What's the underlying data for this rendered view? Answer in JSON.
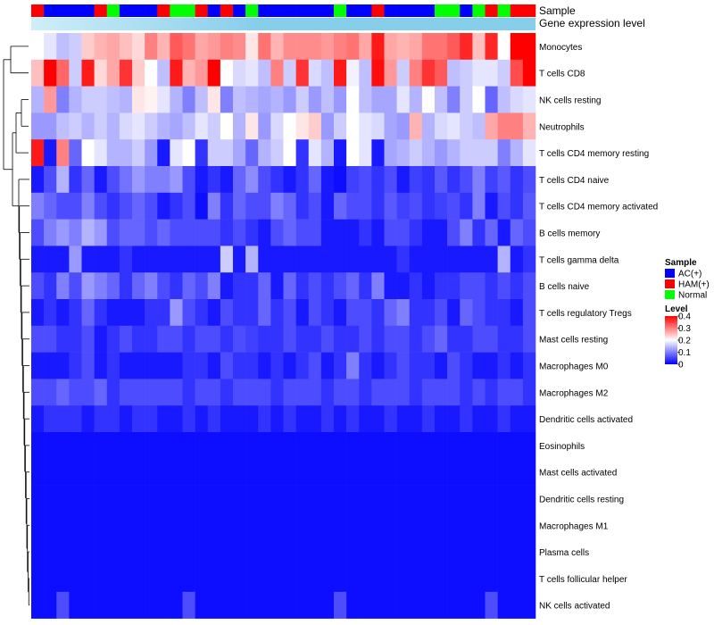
{
  "chart_data": {
    "type": "heatmap",
    "annotation_labels": {
      "sample": "Sample",
      "expression": "Gene expression level"
    },
    "rows": [
      "Monocytes",
      "T cells CD8",
      "NK cells resting",
      "Neutrophils",
      "T cells CD4 memory resting",
      "T cells CD4 naive",
      "T cells CD4 memory activated",
      "B cells memory",
      "T cells gamma delta",
      "B cells naive",
      "T cells regulatory  Tregs",
      "Mast cells resting",
      "Macrophages M0",
      "Macrophages M2",
      "Dendritic cells activated",
      "Eosinophils",
      "Mast cells activated",
      "Dendritic cells resting",
      "Macrophages M1",
      "Plasma cells",
      "T cells follicular helper",
      "NK cells activated"
    ],
    "column_groups": [
      "HAM(+)",
      "AC(+)",
      "AC(+)",
      "AC(+)",
      "AC(+)",
      "HAM(+)",
      "Normal",
      "AC(+)",
      "AC(+)",
      "AC(+)",
      "HAM(+)",
      "Normal",
      "Normal",
      "HAM(+)",
      "AC(+)",
      "HAM(+)",
      "AC(+)",
      "Normal",
      "AC(+)",
      "AC(+)",
      "AC(+)",
      "AC(+)",
      "AC(+)",
      "AC(+)",
      "Normal",
      "AC(+)",
      "AC(+)",
      "HAM(+)",
      "AC(+)",
      "AC(+)",
      "AC(+)",
      "AC(+)",
      "Normal",
      "Normal",
      "AC(+)",
      "Normal",
      "HAM(+)",
      "Normal",
      "HAM(+)",
      "HAM(+)"
    ],
    "values": [
      [
        0.2,
        0.18,
        0.15,
        0.16,
        0.24,
        0.26,
        0.27,
        0.25,
        0.23,
        0.3,
        0.26,
        0.33,
        0.31,
        0.27,
        0.28,
        0.3,
        0.29,
        0.22,
        0.31,
        0.26,
        0.29,
        0.29,
        0.29,
        0.28,
        0.3,
        0.31,
        0.27,
        0.38,
        0.27,
        0.26,
        0.27,
        0.31,
        0.31,
        0.33,
        0.37,
        0.25,
        0.37,
        0.2,
        0.4,
        0.4
      ],
      [
        0.25,
        0.4,
        0.32,
        0.16,
        0.38,
        0.23,
        0.27,
        0.36,
        0.24,
        0.2,
        0.15,
        0.38,
        0.26,
        0.28,
        0.4,
        0.2,
        0.17,
        0.18,
        0.15,
        0.3,
        0.16,
        0.36,
        0.17,
        0.15,
        0.38,
        0.19,
        0.15,
        0.39,
        0.28,
        0.16,
        0.3,
        0.36,
        0.33,
        0.15,
        0.16,
        0.18,
        0.18,
        0.16,
        0.34,
        0.4
      ],
      [
        0.14,
        0.28,
        0.1,
        0.14,
        0.16,
        0.16,
        0.15,
        0.14,
        0.22,
        0.21,
        0.18,
        0.14,
        0.1,
        0.15,
        0.22,
        0.1,
        0.15,
        0.14,
        0.13,
        0.14,
        0.12,
        0.16,
        0.12,
        0.15,
        0.12,
        0.2,
        0.15,
        0.13,
        0.13,
        0.18,
        0.14,
        0.2,
        0.15,
        0.1,
        0.16,
        0.2,
        0.08,
        0.15,
        0.17,
        0.18
      ],
      [
        0.12,
        0.12,
        0.15,
        0.16,
        0.14,
        0.16,
        0.14,
        0.17,
        0.18,
        0.16,
        0.14,
        0.13,
        0.15,
        0.18,
        0.16,
        0.2,
        0.14,
        0.22,
        0.12,
        0.17,
        0.2,
        0.22,
        0.24,
        0.12,
        0.16,
        0.2,
        0.18,
        0.17,
        0.13,
        0.12,
        0.26,
        0.14,
        0.17,
        0.18,
        0.16,
        0.15,
        0.27,
        0.3,
        0.3,
        0.26
      ],
      [
        0.38,
        0.02,
        0.3,
        0.08,
        0.2,
        0.18,
        0.14,
        0.14,
        0.16,
        0.12,
        0.02,
        0.18,
        0.2,
        0.04,
        0.16,
        0.16,
        0.13,
        0.08,
        0.14,
        0.16,
        0.2,
        0.04,
        0.18,
        0.14,
        0.02,
        0.2,
        0.18,
        0.02,
        0.13,
        0.14,
        0.16,
        0.14,
        0.12,
        0.14,
        0.16,
        0.16,
        0.16,
        0.1,
        0.14,
        0.18
      ],
      [
        0.02,
        0.06,
        0.14,
        0.04,
        0.08,
        0.02,
        0.06,
        0.09,
        0.12,
        0.1,
        0.1,
        0.12,
        0.06,
        0.02,
        0.04,
        0.02,
        0.08,
        0.11,
        0.06,
        0.04,
        0.02,
        0.04,
        0.08,
        0.02,
        0.01,
        0.05,
        0.06,
        0.04,
        0.06,
        0.02,
        0.05,
        0.04,
        0.07,
        0.04,
        0.06,
        0.1,
        0.05,
        0.07,
        0.04,
        0.06
      ],
      [
        0.1,
        0.08,
        0.06,
        0.06,
        0.1,
        0.06,
        0.04,
        0.06,
        0.08,
        0.06,
        0.02,
        0.04,
        0.06,
        0.01,
        0.1,
        0.04,
        0.08,
        0.06,
        0.06,
        0.1,
        0.08,
        0.04,
        0.06,
        0.02,
        0.08,
        0.06,
        0.06,
        0.04,
        0.07,
        0.05,
        0.06,
        0.04,
        0.05,
        0.06,
        0.04,
        0.1,
        0.02,
        0.06,
        0.04,
        0.07
      ],
      [
        0.06,
        0.1,
        0.12,
        0.1,
        0.14,
        0.12,
        0.06,
        0.08,
        0.08,
        0.06,
        0.08,
        0.06,
        0.06,
        0.06,
        0.06,
        0.04,
        0.06,
        0.04,
        0.02,
        0.06,
        0.08,
        0.06,
        0.06,
        0.02,
        0.02,
        0.02,
        0.04,
        0.02,
        0.06,
        0.06,
        0.04,
        0.02,
        0.02,
        0.06,
        0.1,
        0.04,
        0.08,
        0.02,
        0.08,
        0.06
      ],
      [
        0.02,
        0.02,
        0.02,
        0.12,
        0.02,
        0.02,
        0.02,
        0.04,
        0.02,
        0.02,
        0.02,
        0.02,
        0.02,
        0.02,
        0.02,
        0.16,
        0.02,
        0.14,
        0.02,
        0.02,
        0.02,
        0.02,
        0.02,
        0.02,
        0.02,
        0.02,
        0.02,
        0.02,
        0.02,
        0.04,
        0.02,
        0.02,
        0.02,
        0.02,
        0.02,
        0.02,
        0.02,
        0.14,
        0.02,
        0.04
      ],
      [
        0.06,
        0.04,
        0.1,
        0.06,
        0.12,
        0.1,
        0.08,
        0.04,
        0.08,
        0.1,
        0.06,
        0.04,
        0.08,
        0.06,
        0.1,
        0.02,
        0.04,
        0.04,
        0.08,
        0.02,
        0.08,
        0.04,
        0.06,
        0.04,
        0.06,
        0.08,
        0.04,
        0.1,
        0.02,
        0.02,
        0.04,
        0.02,
        0.04,
        0.04,
        0.06,
        0.06,
        0.04,
        0.06,
        0.04,
        0.06
      ],
      [
        0.02,
        0.04,
        0.02,
        0.04,
        0.08,
        0.04,
        0.02,
        0.02,
        0.02,
        0.04,
        0.04,
        0.12,
        0.06,
        0.04,
        0.02,
        0.06,
        0.04,
        0.04,
        0.08,
        0.04,
        0.06,
        0.02,
        0.06,
        0.04,
        0.02,
        0.06,
        0.06,
        0.04,
        0.08,
        0.1,
        0.04,
        0.04,
        0.06,
        0.02,
        0.08,
        0.06,
        0.04,
        0.04,
        0.02,
        0.06
      ],
      [
        0.06,
        0.06,
        0.04,
        0.04,
        0.06,
        0.02,
        0.04,
        0.06,
        0.04,
        0.04,
        0.06,
        0.06,
        0.04,
        0.06,
        0.06,
        0.04,
        0.06,
        0.05,
        0.04,
        0.04,
        0.06,
        0.04,
        0.04,
        0.06,
        0.04,
        0.04,
        0.06,
        0.04,
        0.06,
        0.06,
        0.04,
        0.06,
        0.08,
        0.04,
        0.04,
        0.06,
        0.06,
        0.04,
        0.04,
        0.06
      ],
      [
        0.02,
        0.02,
        0.02,
        0.04,
        0.06,
        0.02,
        0.04,
        0.02,
        0.02,
        0.02,
        0.02,
        0.02,
        0.04,
        0.04,
        0.02,
        0.06,
        0.04,
        0.04,
        0.02,
        0.04,
        0.02,
        0.04,
        0.06,
        0.02,
        0.04,
        0.1,
        0.04,
        0.02,
        0.04,
        0.06,
        0.04,
        0.04,
        0.02,
        0.06,
        0.04,
        0.02,
        0.02,
        0.04,
        0.02,
        0.04
      ],
      [
        0.06,
        0.06,
        0.08,
        0.06,
        0.06,
        0.08,
        0.04,
        0.06,
        0.06,
        0.06,
        0.06,
        0.06,
        0.04,
        0.06,
        0.06,
        0.04,
        0.06,
        0.06,
        0.06,
        0.04,
        0.06,
        0.06,
        0.06,
        0.04,
        0.06,
        0.06,
        0.04,
        0.06,
        0.06,
        0.06,
        0.04,
        0.06,
        0.06,
        0.06,
        0.04,
        0.06,
        0.04,
        0.06,
        0.06,
        0.04
      ],
      [
        0.02,
        0.04,
        0.04,
        0.04,
        0.02,
        0.04,
        0.04,
        0.02,
        0.04,
        0.04,
        0.02,
        0.02,
        0.04,
        0.02,
        0.04,
        0.02,
        0.02,
        0.02,
        0.04,
        0.02,
        0.04,
        0.02,
        0.02,
        0.04,
        0.02,
        0.04,
        0.02,
        0.02,
        0.04,
        0.02,
        0.02,
        0.04,
        0.02,
        0.02,
        0.04,
        0.02,
        0.02,
        0.04,
        0.02,
        0.02
      ],
      [
        0.01,
        0.01,
        0.01,
        0.01,
        0.01,
        0.01,
        0.01,
        0.01,
        0.01,
        0.01,
        0.01,
        0.01,
        0.01,
        0.01,
        0.01,
        0.01,
        0.01,
        0.01,
        0.01,
        0.01,
        0.01,
        0.01,
        0.01,
        0.01,
        0.01,
        0.01,
        0.01,
        0.01,
        0.01,
        0.01,
        0.01,
        0.01,
        0.01,
        0.01,
        0.01,
        0.01,
        0.01,
        0.01,
        0.01,
        0.01
      ],
      [
        0.01,
        0.01,
        0.01,
        0.01,
        0.01,
        0.01,
        0.01,
        0.01,
        0.01,
        0.01,
        0.01,
        0.01,
        0.01,
        0.01,
        0.01,
        0.01,
        0.01,
        0.01,
        0.01,
        0.01,
        0.01,
        0.01,
        0.01,
        0.01,
        0.01,
        0.01,
        0.01,
        0.01,
        0.01,
        0.01,
        0.01,
        0.01,
        0.01,
        0.01,
        0.01,
        0.01,
        0.01,
        0.01,
        0.01,
        0.01
      ],
      [
        0.01,
        0.01,
        0.01,
        0.01,
        0.01,
        0.01,
        0.01,
        0.01,
        0.01,
        0.01,
        0.01,
        0.01,
        0.01,
        0.01,
        0.01,
        0.01,
        0.01,
        0.01,
        0.01,
        0.01,
        0.01,
        0.01,
        0.01,
        0.01,
        0.01,
        0.01,
        0.01,
        0.01,
        0.01,
        0.01,
        0.01,
        0.01,
        0.01,
        0.01,
        0.01,
        0.01,
        0.01,
        0.01,
        0.01,
        0.01
      ],
      [
        0.01,
        0.01,
        0.01,
        0.01,
        0.01,
        0.01,
        0.01,
        0.01,
        0.01,
        0.01,
        0.01,
        0.01,
        0.01,
        0.01,
        0.01,
        0.01,
        0.01,
        0.01,
        0.01,
        0.01,
        0.01,
        0.01,
        0.01,
        0.01,
        0.01,
        0.01,
        0.01,
        0.01,
        0.01,
        0.01,
        0.01,
        0.01,
        0.01,
        0.01,
        0.01,
        0.01,
        0.01,
        0.01,
        0.01,
        0.01
      ],
      [
        0.01,
        0.01,
        0.01,
        0.01,
        0.01,
        0.01,
        0.01,
        0.01,
        0.01,
        0.01,
        0.01,
        0.01,
        0.01,
        0.01,
        0.01,
        0.01,
        0.01,
        0.01,
        0.01,
        0.01,
        0.01,
        0.01,
        0.01,
        0.01,
        0.01,
        0.01,
        0.01,
        0.01,
        0.01,
        0.01,
        0.01,
        0.01,
        0.01,
        0.01,
        0.01,
        0.01,
        0.01,
        0.01,
        0.01,
        0.01
      ],
      [
        0.01,
        0.01,
        0.01,
        0.01,
        0.01,
        0.01,
        0.01,
        0.01,
        0.01,
        0.01,
        0.01,
        0.01,
        0.01,
        0.01,
        0.01,
        0.01,
        0.01,
        0.01,
        0.01,
        0.01,
        0.01,
        0.01,
        0.01,
        0.01,
        0.01,
        0.01,
        0.01,
        0.01,
        0.01,
        0.01,
        0.01,
        0.01,
        0.01,
        0.01,
        0.01,
        0.01,
        0.01,
        0.01,
        0.01,
        0.01
      ],
      [
        0.01,
        0.01,
        0.06,
        0.01,
        0.01,
        0.01,
        0.01,
        0.01,
        0.01,
        0.01,
        0.01,
        0.01,
        0.06,
        0.01,
        0.01,
        0.01,
        0.01,
        0.01,
        0.01,
        0.01,
        0.01,
        0.01,
        0.01,
        0.01,
        0.06,
        0.01,
        0.01,
        0.01,
        0.01,
        0.01,
        0.01,
        0.01,
        0.01,
        0.01,
        0.01,
        0.01,
        0.06,
        0.01,
        0.01,
        0.01
      ]
    ],
    "sample_legend": {
      "title": "Sample",
      "entries": [
        {
          "label": "AC(+)",
          "color": "#0000ff"
        },
        {
          "label": "HAM(+)",
          "color": "#ff0000"
        },
        {
          "label": "Normal",
          "color": "#00ff00"
        }
      ]
    },
    "level_legend": {
      "title": "Level",
      "ticks": [
        "0.4",
        "0.3",
        "0.2",
        "0.1",
        "0"
      ],
      "range": [
        0,
        0.4
      ],
      "low_color": "#0000ff",
      "mid_color": "#ffffff",
      "high_color": "#ff0000"
    },
    "expression_bar_color": "#87ceeb",
    "expression_bar_light_color": "#cfeef8"
  }
}
